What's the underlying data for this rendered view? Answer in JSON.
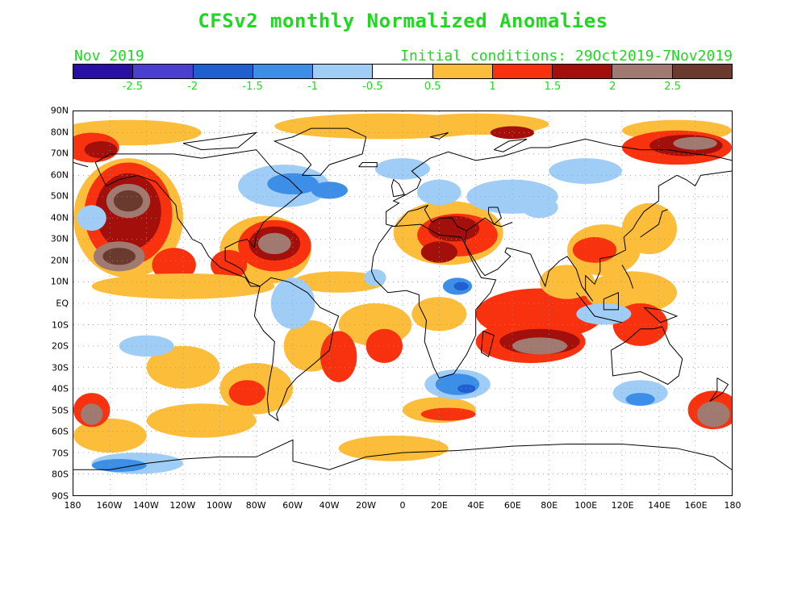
{
  "title": "CFSv2 monthly Normalized Anomalies",
  "subtitle_left": "Nov 2019",
  "subtitle_right": "Initial conditions: 29Oct2019-7Nov2019",
  "colorbar": {
    "colors": [
      "#2a0fa5",
      "#4a3fcf",
      "#1f5fd0",
      "#3d8ee6",
      "#9fcdf5",
      "#ffffff",
      "#fbbd3a",
      "#f8320f",
      "#a30f0a",
      "#a07a70",
      "#6a3a2e"
    ],
    "labels": [
      "-2.5",
      "-2",
      "-1.5",
      "-1",
      "-0.5",
      "0.5",
      "1",
      "1.5",
      "2",
      "2.5"
    ]
  },
  "map": {
    "projection": "equirectangular",
    "lon_range": [
      -180,
      180
    ],
    "lat_range": [
      -90,
      90
    ],
    "lat_labels": [
      "90N",
      "80N",
      "70N",
      "60N",
      "50N",
      "40N",
      "30N",
      "20N",
      "10N",
      "EQ",
      "10S",
      "20S",
      "30S",
      "40S",
      "50S",
      "60S",
      "70S",
      "80S",
      "90S"
    ],
    "lon_labels": [
      "180",
      "160W",
      "140W",
      "120W",
      "100W",
      "80W",
      "60W",
      "40W",
      "20W",
      "0",
      "20E",
      "40E",
      "60E",
      "80E",
      "100E",
      "120E",
      "140E",
      "160E",
      "180"
    ]
  }
}
